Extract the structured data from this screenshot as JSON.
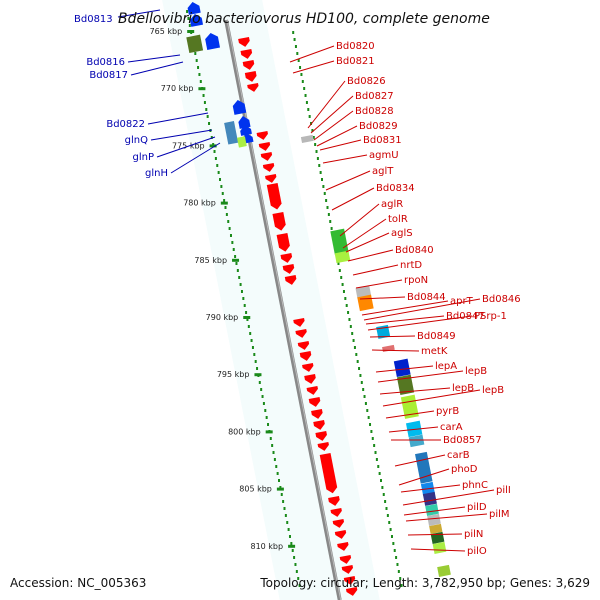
{
  "title": "Bdellovibrio bacteriovorus HD100, complete genome",
  "title_prefix_label": "Bd0813",
  "colors": {
    "forward_gene": "#0033ee",
    "reverse_gene": "#ff0000",
    "forward_label": "#0000b0",
    "reverse_label": "#cc0000",
    "backbone": "#888888",
    "tick": "#1a8a1a",
    "track_bg": "#f4fcfc"
  },
  "ticks": [
    "765 kbp",
    "770 kbp",
    "775 kbp",
    "780 kbp",
    "785 kbp",
    "790 kbp",
    "795 kbp",
    "800 kbp",
    "805 kbp",
    "810 kbp"
  ],
  "forward_labels": [
    "Bd0816",
    "Bd0817",
    "Bd0822",
    "glnQ",
    "glnP",
    "glnH"
  ],
  "reverse_labels": [
    "Bd0820",
    "Bd0821",
    "Bd0826",
    "Bd0827",
    "Bd0828",
    "Bd0829",
    "Bd0831",
    "agmU",
    "aglT",
    "Bd0834",
    "aglR",
    "tolR",
    "aglS",
    "Bd0840",
    "nrtD",
    "rpoN",
    "Bd0844",
    "aprT",
    "Bd0846",
    "Bd0847",
    "PSrp-1",
    "Bd0849",
    "metK",
    "lepA",
    "lepB",
    "lepB",
    "lepB",
    "pyrB",
    "carA",
    "Bd0857",
    "carB",
    "phoD",
    "phnC",
    "pilI",
    "pilD",
    "pilM",
    "pilN",
    "pilO"
  ],
  "footer": {
    "accession": "Accession: NC_005363",
    "topology": "Topology: circular; Length: 3,782,950 bp; Genes: 3,629"
  }
}
